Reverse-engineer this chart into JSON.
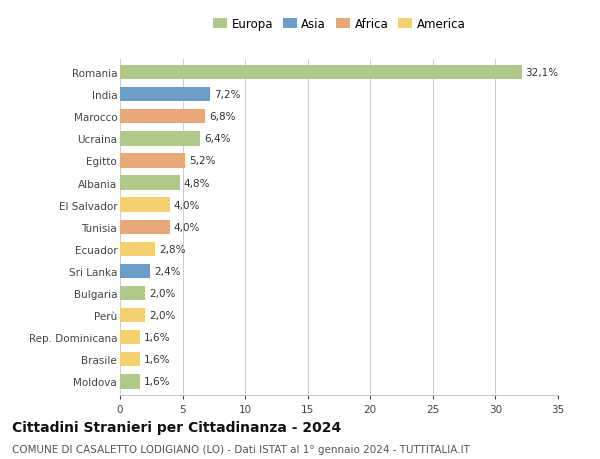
{
  "countries": [
    "Romania",
    "India",
    "Marocco",
    "Ucraina",
    "Egitto",
    "Albania",
    "El Salvador",
    "Tunisia",
    "Ecuador",
    "Sri Lanka",
    "Bulgaria",
    "Perù",
    "Rep. Dominicana",
    "Brasile",
    "Moldova"
  ],
  "values": [
    32.1,
    7.2,
    6.8,
    6.4,
    5.2,
    4.8,
    4.0,
    4.0,
    2.8,
    2.4,
    2.0,
    2.0,
    1.6,
    1.6,
    1.6
  ],
  "labels": [
    "32,1%",
    "7,2%",
    "6,8%",
    "6,4%",
    "5,2%",
    "4,8%",
    "4,0%",
    "4,0%",
    "2,8%",
    "2,4%",
    "2,0%",
    "2,0%",
    "1,6%",
    "1,6%",
    "1,6%"
  ],
  "continents": [
    "Europa",
    "Asia",
    "Africa",
    "Europa",
    "Africa",
    "Europa",
    "America",
    "Africa",
    "America",
    "Asia",
    "Europa",
    "America",
    "America",
    "America",
    "Europa"
  ],
  "colors": {
    "Europa": "#b0c98a",
    "Asia": "#6b9dc8",
    "Africa": "#e8a87a",
    "America": "#f2d06e"
  },
  "legend_order": [
    "Europa",
    "Asia",
    "Africa",
    "America"
  ],
  "xlim": [
    0,
    35
  ],
  "xticks": [
    0,
    5,
    10,
    15,
    20,
    25,
    30,
    35
  ],
  "title": "Cittadini Stranieri per Cittadinanza - 2024",
  "subtitle": "COMUNE DI CASALETTO LODIGIANO (LO) - Dati ISTAT al 1° gennaio 2024 - TUTTITALIA.IT",
  "bg_color": "#ffffff",
  "grid_color": "#cccccc",
  "bar_height": 0.65,
  "label_fontsize": 7.5,
  "tick_fontsize": 7.5,
  "title_fontsize": 10,
  "subtitle_fontsize": 7.5
}
